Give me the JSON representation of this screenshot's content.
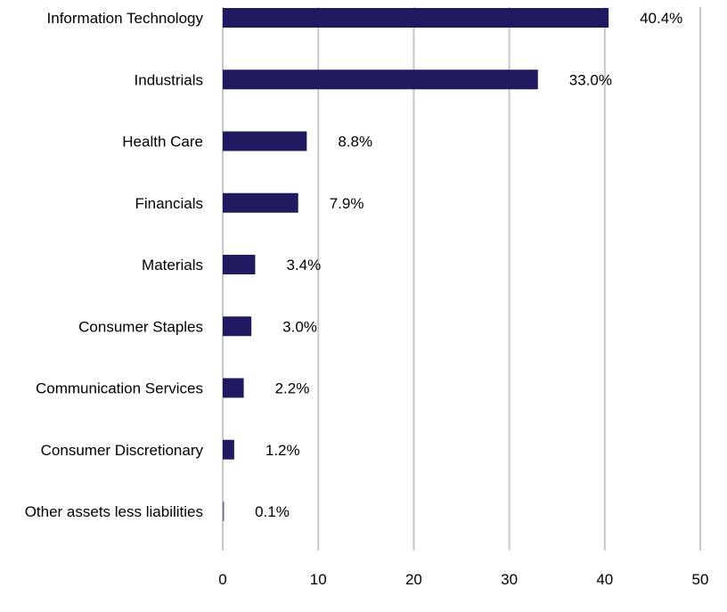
{
  "chart_data": {
    "type": "bar",
    "orientation": "horizontal",
    "categories": [
      "Information Technology",
      "Industrials",
      "Health Care",
      "Financials",
      "Materials",
      "Consumer Staples",
      "Communication Services",
      "Consumer Discretionary",
      "Other assets less liabilities"
    ],
    "values": [
      40.4,
      33.0,
      8.8,
      7.9,
      3.4,
      3.0,
      2.2,
      1.2,
      0.1
    ],
    "data_labels": [
      "40.4%",
      "33.0%",
      "8.8%",
      "7.9%",
      "3.4%",
      "3.0%",
      "2.2%",
      "1.2%",
      "0.1%"
    ],
    "title": "",
    "xlabel": "",
    "ylabel": "",
    "xlim": [
      0,
      50
    ],
    "x_ticks": [
      0,
      10,
      20,
      30,
      40,
      50
    ],
    "grid": "vertical",
    "legend": "none",
    "colors": {
      "bar": "#201a60",
      "grid": "#c8c8c8"
    }
  }
}
